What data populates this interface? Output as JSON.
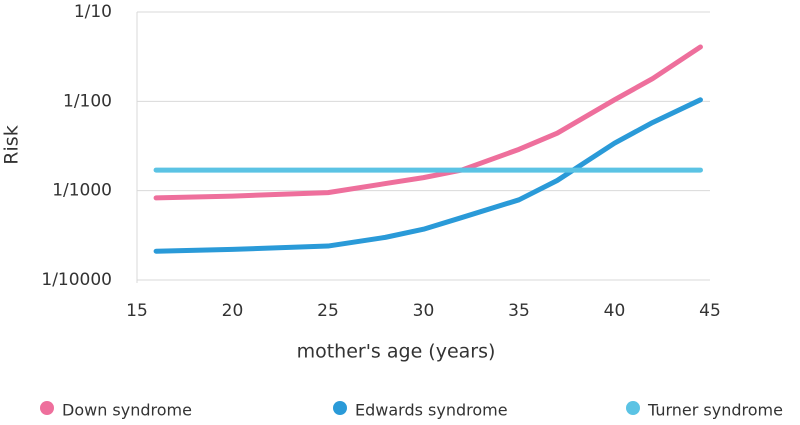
{
  "chart_data": {
    "type": "line",
    "x_label": "mother's age (years)",
    "y_label": "Risk",
    "x": [
      16,
      20,
      25,
      28,
      30,
      32,
      35,
      37,
      40,
      42,
      44.5
    ],
    "series": [
      {
        "name": "Down syndrome",
        "color": "#ee6f9c",
        "values": [
          0.00083,
          0.00087,
          0.00095,
          0.0012,
          0.0014,
          0.0017,
          0.0029,
          0.0044,
          0.0104,
          0.018,
          0.0406
        ]
      },
      {
        "name": "Edwards syndrome",
        "color": "#2a9ad8",
        "values": [
          0.00021,
          0.00022,
          0.00024,
          0.0003,
          0.00037,
          0.0005,
          0.00079,
          0.0013,
          0.0034,
          0.0058,
          0.0104
        ]
      },
      {
        "name": "Turner syndrome",
        "color": "#5bc3e4",
        "values": [
          0.0017,
          0.0017,
          0.0017,
          0.0017,
          0.0017,
          0.0017,
          0.0017,
          0.0017,
          0.0017,
          0.0017,
          0.0017
        ]
      }
    ],
    "xlim": [
      15,
      45
    ],
    "xticks": [
      15,
      20,
      25,
      30,
      35,
      40,
      45
    ],
    "ylim": [
      0.0001,
      0.1
    ],
    "yticks": [
      {
        "value": 0.1,
        "label": "1/10"
      },
      {
        "value": 0.01,
        "label": "1/100"
      },
      {
        "value": 0.001,
        "label": "1/1000"
      },
      {
        "value": 0.0001,
        "label": "1/10000"
      }
    ],
    "y_scale": "log",
    "grid": true
  }
}
